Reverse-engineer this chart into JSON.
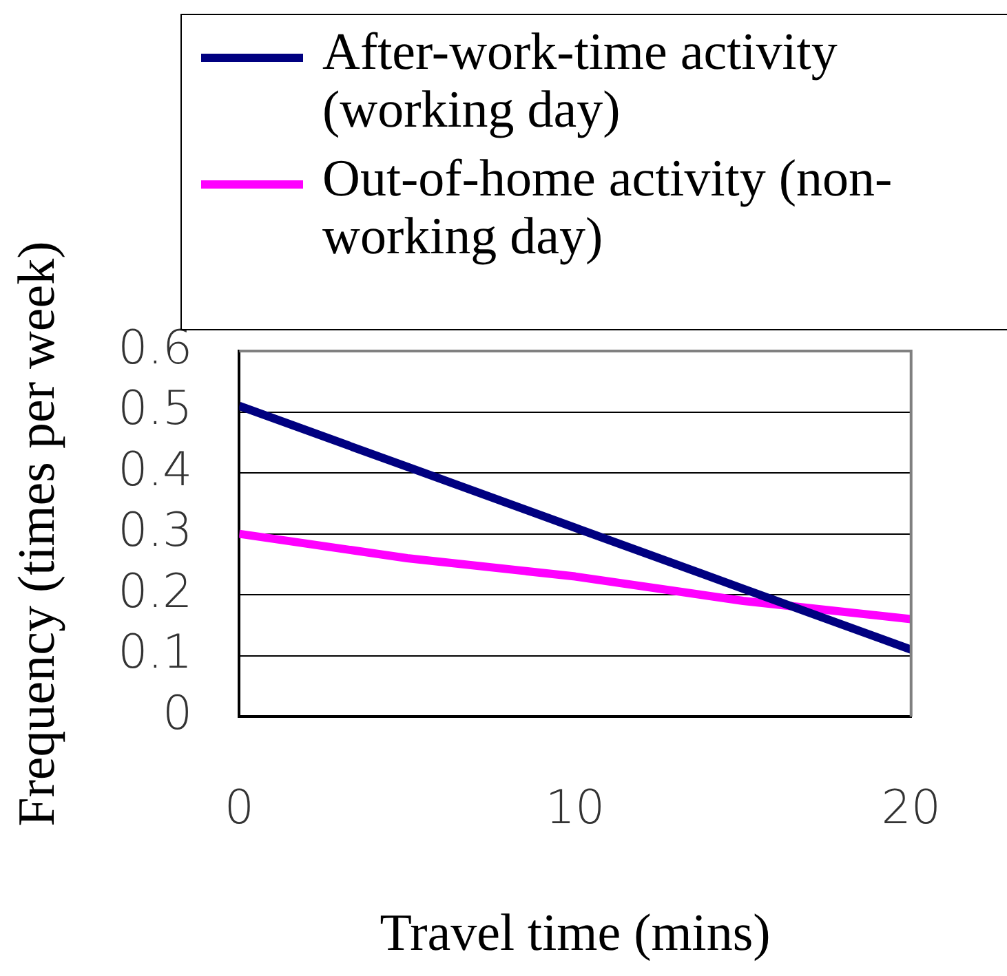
{
  "chart_data": {
    "type": "line",
    "xlabel": "Travel time (mins)",
    "ylabel": "Frequency (times per week)",
    "x": [
      0,
      5,
      10,
      15,
      20
    ],
    "series": [
      {
        "name": "After-work-time activity (working day)",
        "color": "#000080",
        "values": [
          0.51,
          0.41,
          0.31,
          0.21,
          0.11
        ]
      },
      {
        "name": "Out-of-home activity (non-working day)",
        "color": "#ff00ff",
        "values": [
          0.3,
          0.26,
          0.23,
          0.19,
          0.16
        ]
      }
    ],
    "xlim": [
      0,
      20
    ],
    "xticks": [
      0,
      10,
      20
    ],
    "ylim": [
      0,
      0.6
    ],
    "yticks": [
      0,
      0.1,
      0.2,
      0.3,
      0.4,
      0.5,
      0.6
    ],
    "grid": "y",
    "legend": "top",
    "marker": "none",
    "line_style": "solid"
  }
}
